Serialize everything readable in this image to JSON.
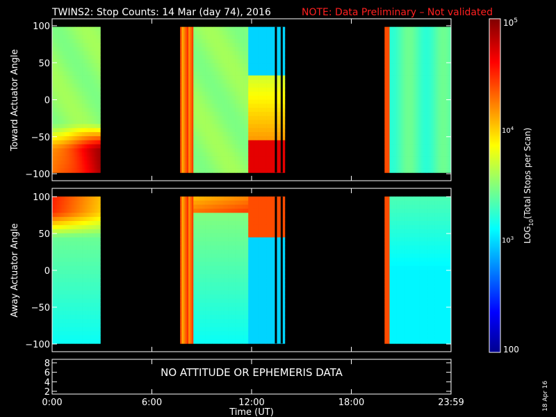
{
  "title": {
    "main": "TWINS2: Stop Counts: 14 Mar (day  74), 2016",
    "note": "NOTE: Data Preliminary – Not validated",
    "main_color": "#ffffff",
    "note_color": "#ff2020"
  },
  "x_axis": {
    "label": "Time (UT)",
    "ticks": [
      "0:00",
      "6:00",
      "12:00",
      "18:00",
      "23:59"
    ],
    "range_hours": [
      0,
      24
    ]
  },
  "panels": {
    "toward": {
      "ylabel": "Toward Actuator Angle",
      "ticks": [
        "100",
        "50",
        "0",
        "−50",
        "−100"
      ]
    },
    "away": {
      "ylabel": "Away Actuator Angle",
      "ticks": [
        "100",
        "50",
        "0",
        "−50",
        "−100"
      ]
    },
    "bottom": {
      "ticks": [
        "8",
        "6",
        "4",
        "2"
      ],
      "message": "NO ATTITUDE OR EPHEMERIS DATA"
    }
  },
  "colorbar": {
    "label_prefix": "LOG",
    "label_sub": "10",
    "label_suffix": "(Total Stops per Scan)",
    "ticks": {
      "top_base": "10",
      "top_exp": "5",
      "mid_base": "10",
      "mid_exp": "4",
      "low_base": "10",
      "low_exp": "3",
      "bottom": "100"
    },
    "range": [
      100,
      100000
    ],
    "scale": "log"
  },
  "footer_date": "18 Apr 16",
  "chart_data": {
    "type": "heatmap",
    "title": "TWINS2: Stop Counts: 14 Mar (day  74), 2016",
    "xlabel": "Time (UT)",
    "x_unit": "hours UT",
    "xlim": [
      0,
      24
    ],
    "ylim": [
      -100,
      100
    ],
    "angle_range": [
      -90,
      90
    ],
    "color_scale": "log10 (Total Stops per Scan)",
    "color_range": [
      100,
      100000
    ],
    "data_intervals_hours": [
      [
        0.0,
        2.9
      ],
      [
        7.7,
        14.0
      ],
      [
        20.0,
        24.0
      ]
    ],
    "panels": [
      {
        "name": "Toward",
        "ylabel": "Toward Actuator Angle",
        "typical_log10_counts": 3.5,
        "high_counts_regions": "near -70 to -90 deg during 0-3h and 11-14h"
      },
      {
        "name": "Away",
        "ylabel": "Away Actuator Angle",
        "typical_log10_counts": 3.3,
        "high_counts_regions": "near +60 to +90 deg during 0-3h and 8-14h"
      }
    ]
  }
}
